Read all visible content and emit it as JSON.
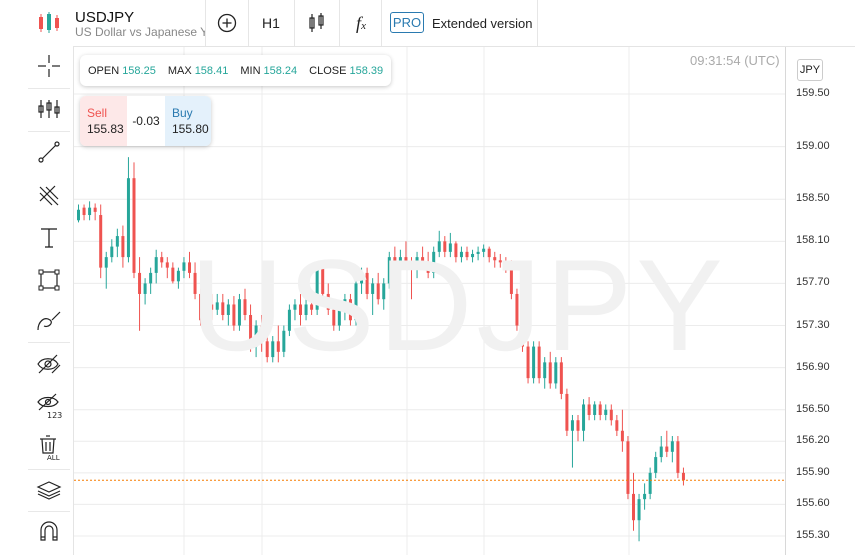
{
  "header": {
    "symbol": "USDJPY",
    "description": "US Dollar vs Japanese Yen",
    "timeframe": "H1",
    "pro_badge": "PRO",
    "pro_label": "Extended version",
    "add_icon": "circle-plus-icon",
    "chart_type_icon": "candles-icon",
    "indicator_icon": "function-icon"
  },
  "sidebar": {
    "tools": [
      {
        "name": "crosshair-icon"
      },
      {
        "name": "indicators-icon"
      },
      {
        "name": "trendline-icon"
      },
      {
        "name": "fibonacci-icon"
      },
      {
        "name": "text-icon"
      },
      {
        "name": "rectangle-icon"
      },
      {
        "name": "brush-icon"
      },
      {
        "name": "hide-drawings-icon"
      },
      {
        "name": "hide-labels-icon"
      },
      {
        "name": "delete-all-icon"
      },
      {
        "name": "layers-icon"
      },
      {
        "name": "magnet-icon"
      }
    ]
  },
  "ohlc": {
    "open_label": "OPEN",
    "open": "158.25",
    "max_label": "MAX",
    "max": "158.41",
    "min_label": "MIN",
    "min": "158.24",
    "close_label": "CLOSE",
    "close": "158.39"
  },
  "trade": {
    "sell_label": "Sell",
    "sell": "155.83",
    "spread": "-0.03",
    "buy_label": "Buy",
    "buy": "155.80"
  },
  "timestamp": "09:31:54 (UTC)",
  "currency_button": "JPY",
  "watermark": "USDJPY",
  "colors": {
    "up": "#26a69a",
    "down": "#ef5350",
    "price_line": "#f57c00"
  },
  "chart_data": {
    "type": "candlestick",
    "title": "",
    "ylim": [
      155.2,
      159.7
    ],
    "y_ticks": [
      "159.50",
      "159.00",
      "158.50",
      "158.10",
      "157.70",
      "157.30",
      "156.90",
      "156.50",
      "156.20",
      "155.90",
      "155.60",
      "155.30"
    ],
    "current_price": 155.83,
    "candles": [
      [
        158.3,
        158.45,
        158.28,
        158.4
      ],
      [
        158.42,
        158.45,
        158.3,
        158.35
      ],
      [
        158.35,
        158.48,
        158.3,
        158.42
      ],
      [
        158.42,
        158.46,
        158.3,
        158.38
      ],
      [
        158.35,
        158.45,
        157.75,
        157.85
      ],
      [
        157.85,
        158.0,
        157.65,
        157.95
      ],
      [
        157.95,
        158.12,
        157.9,
        158.05
      ],
      [
        158.05,
        158.22,
        157.95,
        158.15
      ],
      [
        158.15,
        158.25,
        157.85,
        157.95
      ],
      [
        157.95,
        158.9,
        157.9,
        158.7
      ],
      [
        158.7,
        158.85,
        157.75,
        157.8
      ],
      [
        157.8,
        157.95,
        157.25,
        157.6
      ],
      [
        157.6,
        157.75,
        157.5,
        157.7
      ],
      [
        157.7,
        157.85,
        157.6,
        157.8
      ],
      [
        157.8,
        158.02,
        157.7,
        157.95
      ],
      [
        157.95,
        158.0,
        157.85,
        157.9
      ],
      [
        157.9,
        157.95,
        157.75,
        157.85
      ],
      [
        157.85,
        157.9,
        157.7,
        157.72
      ],
      [
        157.72,
        157.85,
        157.65,
        157.82
      ],
      [
        157.82,
        157.95,
        157.75,
        157.9
      ],
      [
        157.9,
        158.0,
        157.75,
        157.8
      ],
      [
        157.8,
        157.9,
        157.55,
        157.6
      ],
      [
        157.6,
        157.65,
        157.3,
        157.35
      ],
      [
        157.35,
        157.55,
        157.3,
        157.5
      ],
      [
        157.5,
        157.6,
        157.35,
        157.45
      ],
      [
        157.45,
        157.6,
        157.4,
        157.52
      ],
      [
        157.52,
        157.6,
        157.35,
        157.4
      ],
      [
        157.4,
        157.55,
        157.3,
        157.5
      ],
      [
        157.5,
        157.58,
        157.25,
        157.3
      ],
      [
        157.3,
        157.6,
        157.25,
        157.55
      ],
      [
        157.55,
        157.65,
        157.35,
        157.4
      ],
      [
        157.4,
        157.5,
        157.05,
        157.1
      ],
      [
        157.1,
        157.35,
        157.0,
        157.3
      ],
      [
        157.3,
        157.4,
        157.05,
        157.15
      ],
      [
        157.15,
        157.2,
        156.95,
        157.0
      ],
      [
        157.0,
        157.2,
        156.95,
        157.15
      ],
      [
        157.15,
        157.3,
        156.95,
        157.05
      ],
      [
        157.05,
        157.3,
        157.0,
        157.25
      ],
      [
        157.25,
        157.5,
        157.2,
        157.45
      ],
      [
        157.45,
        157.55,
        157.35,
        157.5
      ],
      [
        157.5,
        157.6,
        157.3,
        157.4
      ],
      [
        157.4,
        157.55,
        157.35,
        157.5
      ],
      [
        157.5,
        157.6,
        157.4,
        157.45
      ],
      [
        157.45,
        157.9,
        157.4,
        157.85
      ],
      [
        157.85,
        157.9,
        157.55,
        157.6
      ],
      [
        157.6,
        157.7,
        157.4,
        157.45
      ],
      [
        157.45,
        157.55,
        157.25,
        157.3
      ],
      [
        157.3,
        157.5,
        157.25,
        157.45
      ],
      [
        157.45,
        157.6,
        157.35,
        157.55
      ],
      [
        157.55,
        157.6,
        157.3,
        157.35
      ],
      [
        157.35,
        157.8,
        157.3,
        157.7
      ],
      [
        157.7,
        157.85,
        157.6,
        157.8
      ],
      [
        157.8,
        157.85,
        157.55,
        157.6
      ],
      [
        157.6,
        157.75,
        157.4,
        157.7
      ],
      [
        157.7,
        157.8,
        157.5,
        157.55
      ],
      [
        157.55,
        157.75,
        157.45,
        157.7
      ],
      [
        157.7,
        158.0,
        157.65,
        157.95
      ],
      [
        157.95,
        158.05,
        157.8,
        157.85
      ],
      [
        157.85,
        158.02,
        157.75,
        157.95
      ],
      [
        157.95,
        158.1,
        157.85,
        157.88
      ],
      [
        157.88,
        157.95,
        157.55,
        157.85
      ],
      [
        157.85,
        158.0,
        157.75,
        157.95
      ],
      [
        157.95,
        158.05,
        157.85,
        157.9
      ],
      [
        157.9,
        158.0,
        157.75,
        157.8
      ],
      [
        157.8,
        158.05,
        157.75,
        158.0
      ],
      [
        158.0,
        158.2,
        157.95,
        158.1
      ],
      [
        158.1,
        158.15,
        157.95,
        158.0
      ],
      [
        158.0,
        158.18,
        157.95,
        158.08
      ],
      [
        158.08,
        158.1,
        157.9,
        157.95
      ],
      [
        157.95,
        158.05,
        157.9,
        158.0
      ],
      [
        158.0,
        158.05,
        157.92,
        157.95
      ],
      [
        157.95,
        158.02,
        157.9,
        157.98
      ],
      [
        157.98,
        158.05,
        157.92,
        158.0
      ],
      [
        158.0,
        158.07,
        157.95,
        158.03
      ],
      [
        158.03,
        158.05,
        157.9,
        157.95
      ],
      [
        157.95,
        158.0,
        157.85,
        157.92
      ],
      [
        157.92,
        157.98,
        157.85,
        157.9
      ],
      [
        157.9,
        157.95,
        157.8,
        157.85
      ],
      [
        157.85,
        157.92,
        157.55,
        157.6
      ],
      [
        157.6,
        157.65,
        157.25,
        157.3
      ],
      [
        157.3,
        157.35,
        157.05,
        157.1
      ],
      [
        157.1,
        157.15,
        156.75,
        156.8
      ],
      [
        156.8,
        157.15,
        156.75,
        157.1
      ],
      [
        157.1,
        157.15,
        156.75,
        156.8
      ],
      [
        156.8,
        157.0,
        156.7,
        156.95
      ],
      [
        156.95,
        157.05,
        156.7,
        156.75
      ],
      [
        156.75,
        157.0,
        156.7,
        156.95
      ],
      [
        156.95,
        157.0,
        156.6,
        156.65
      ],
      [
        156.65,
        156.7,
        156.25,
        156.3
      ],
      [
        156.3,
        156.45,
        155.95,
        156.4
      ],
      [
        156.4,
        156.45,
        156.2,
        156.3
      ],
      [
        156.3,
        156.6,
        156.2,
        156.55
      ],
      [
        156.55,
        156.62,
        156.4,
        156.45
      ],
      [
        156.45,
        156.58,
        156.4,
        156.55
      ],
      [
        156.55,
        156.58,
        156.4,
        156.45
      ],
      [
        156.45,
        156.55,
        156.4,
        156.5
      ],
      [
        156.5,
        156.55,
        156.35,
        156.4
      ],
      [
        156.4,
        156.45,
        156.25,
        156.3
      ],
      [
        156.3,
        156.5,
        156.1,
        156.2
      ],
      [
        156.2,
        156.25,
        155.65,
        155.7
      ],
      [
        155.7,
        155.9,
        155.35,
        155.45
      ],
      [
        155.45,
        155.7,
        155.25,
        155.65
      ],
      [
        155.65,
        155.8,
        155.55,
        155.7
      ],
      [
        155.7,
        155.95,
        155.65,
        155.9
      ],
      [
        155.9,
        156.1,
        155.85,
        156.05
      ],
      [
        156.05,
        156.25,
        156.0,
        156.15
      ],
      [
        156.15,
        156.3,
        156.05,
        156.1
      ],
      [
        156.1,
        156.25,
        156.0,
        156.2
      ],
      [
        156.2,
        156.25,
        155.85,
        155.9
      ],
      [
        155.9,
        155.95,
        155.78,
        155.83
      ]
    ]
  }
}
